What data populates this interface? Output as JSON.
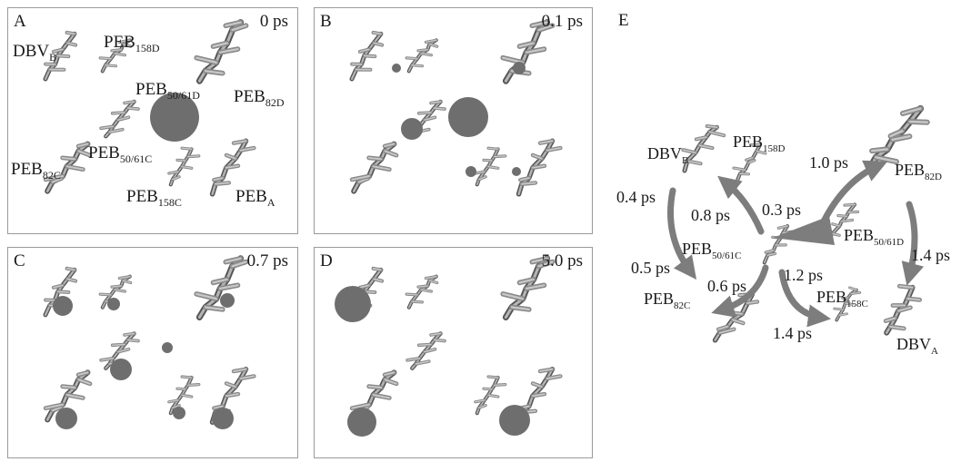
{
  "panels": [
    {
      "letter": "A",
      "time": "0 ps",
      "labels": {
        "dbvb": {
          "main": "DBV",
          "sub": "B"
        },
        "peb158d": {
          "main": "PEB",
          "sub": "158D"
        },
        "peb5061d": {
          "main": "PEB",
          "sub": "50/61D"
        },
        "peb82d": {
          "main": "PEB",
          "sub": "82D"
        },
        "peb82c": {
          "main": "PEB",
          "sub": "82C"
        },
        "peb5061c": {
          "main": "PEB",
          "sub": "50/61C"
        },
        "peb158c": {
          "main": "PEB",
          "sub": "158C"
        },
        "peba": {
          "main": "PEB",
          "sub": "A"
        }
      }
    },
    {
      "letter": "B",
      "time": "0.1 ps"
    },
    {
      "letter": "C",
      "time": "0.7 ps"
    },
    {
      "letter": "D",
      "time": "5.0 ps"
    }
  ],
  "network": {
    "letter": "E",
    "labels": {
      "dbvb": {
        "main": "DBV",
        "sub": "B"
      },
      "peb158d": {
        "main": "PEB",
        "sub": "158D"
      },
      "peb82d": {
        "main": "PEB",
        "sub": "82D"
      },
      "peb5061c": {
        "main": "PEB",
        "sub": "50/61C"
      },
      "peb5061d": {
        "main": "PEB",
        "sub": "50/61D"
      },
      "peb82c": {
        "main": "PEB",
        "sub": "82C"
      },
      "peb158c": {
        "main": "PEB",
        "sub": "158C"
      },
      "dbva": {
        "main": "DBV",
        "sub": "A"
      }
    },
    "rates": {
      "r1": "1.0 ps",
      "r2": "0.4 ps",
      "r3": "0.8 ps",
      "r4": "0.3 ps",
      "r5": "1.4 ps",
      "r6": "0.5 ps",
      "r7": "0.6 ps",
      "r8": "1.2 ps",
      "r9": "1.4 ps"
    }
  },
  "colors": {
    "panel_border": "#9a9a9a",
    "molecule": "#8a8a8a",
    "molecule_dark": "#555555",
    "excitation": "#6e6e6e",
    "arrow": "#7d7d7d"
  }
}
